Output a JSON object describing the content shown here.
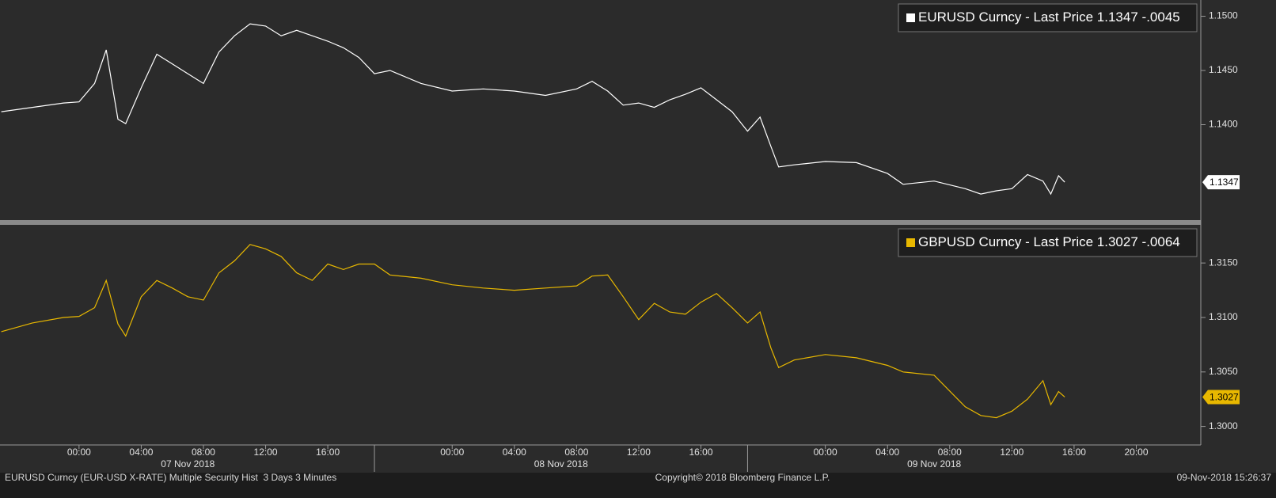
{
  "chart_data": {
    "type": "line",
    "x": [
      "2018-11-06T19:00",
      "2018-11-06T21:00",
      "2018-11-06T23:00",
      "2018-11-07T00:00",
      "2018-11-07T01:00",
      "2018-11-07T01:45",
      "2018-11-07T02:30",
      "2018-11-07T03:00",
      "2018-11-07T04:00",
      "2018-11-07T05:00",
      "2018-11-07T06:00",
      "2018-11-07T07:00",
      "2018-11-07T08:00",
      "2018-11-07T09:00",
      "2018-11-07T10:00",
      "2018-11-07T11:00",
      "2018-11-07T12:00",
      "2018-11-07T13:00",
      "2018-11-07T14:00",
      "2018-11-07T15:00",
      "2018-11-07T16:00",
      "2018-11-07T17:00",
      "2018-11-07T18:00",
      "2018-11-07T19:00",
      "2018-11-07T20:00",
      "2018-11-07T22:00",
      "2018-11-08T00:00",
      "2018-11-08T02:00",
      "2018-11-08T04:00",
      "2018-11-08T06:00",
      "2018-11-08T08:00",
      "2018-11-08T09:00",
      "2018-11-08T10:00",
      "2018-11-08T11:00",
      "2018-11-08T12:00",
      "2018-11-08T13:00",
      "2018-11-08T14:00",
      "2018-11-08T15:00",
      "2018-11-08T16:00",
      "2018-11-08T17:00",
      "2018-11-08T18:00",
      "2018-11-08T19:00",
      "2018-11-08T19:48",
      "2018-11-08T20:30",
      "2018-11-08T21:00",
      "2018-11-08T22:00",
      "2018-11-09T00:00",
      "2018-11-09T02:00",
      "2018-11-09T04:00",
      "2018-11-09T05:00",
      "2018-11-09T07:00",
      "2018-11-09T09:00",
      "2018-11-09T10:00",
      "2018-11-09T11:00",
      "2018-11-09T12:00",
      "2018-11-09T13:00",
      "2018-11-09T14:00",
      "2018-11-09T14:30",
      "2018-11-09T15:00",
      "2018-11-09T15:24"
    ],
    "xlim": [
      "2018-11-06T18:55",
      "2018-11-10T00:09"
    ],
    "xticks": [
      {
        "value": "2018-11-07T00:00",
        "label": "00:00"
      },
      {
        "value": "2018-11-07T04:00",
        "label": "04:00"
      },
      {
        "value": "2018-11-07T08:00",
        "label": "08:00"
      },
      {
        "value": "2018-11-07T12:00",
        "label": "12:00"
      },
      {
        "value": "2018-11-07T16:00",
        "label": "16:00"
      },
      {
        "value": "2018-11-08T00:00",
        "label": "00:00"
      },
      {
        "value": "2018-11-08T04:00",
        "label": "04:00"
      },
      {
        "value": "2018-11-08T08:00",
        "label": "08:00"
      },
      {
        "value": "2018-11-08T12:00",
        "label": "12:00"
      },
      {
        "value": "2018-11-08T16:00",
        "label": "16:00"
      },
      {
        "value": "2018-11-09T00:00",
        "label": "00:00"
      },
      {
        "value": "2018-11-09T04:00",
        "label": "04:00"
      },
      {
        "value": "2018-11-09T08:00",
        "label": "08:00"
      },
      {
        "value": "2018-11-09T12:00",
        "label": "12:00"
      },
      {
        "value": "2018-11-09T16:00",
        "label": "16:00"
      },
      {
        "value": "2018-11-09T20:00",
        "label": "20:00"
      }
    ],
    "date_labels": [
      {
        "value": "2018-11-07T07:00",
        "label": "07 Nov 2018"
      },
      {
        "value": "2018-11-08T07:00",
        "label": "08 Nov 2018"
      },
      {
        "value": "2018-11-09T07:00",
        "label": "09 Nov 2018"
      }
    ],
    "day_breaks": [
      "2018-11-07T19:00",
      "2018-11-08T19:00"
    ],
    "panels": [
      {
        "series": [
          {
            "name": "EURUSD Curncy - Last Price",
            "color": "#ffffff",
            "values": [
              1.1412,
              1.1416,
              1.142,
              1.1421,
              1.1438,
              1.1469,
              1.1405,
              1.1401,
              1.1434,
              1.1465,
              1.1456,
              1.1447,
              1.1438,
              1.1467,
              1.1482,
              1.1493,
              1.1491,
              1.1482,
              1.1487,
              1.1482,
              1.1477,
              1.1471,
              1.1462,
              1.1447,
              1.145,
              1.1438,
              1.1431,
              1.1433,
              1.1431,
              1.1427,
              1.1433,
              1.144,
              1.1431,
              1.1418,
              1.142,
              1.1416,
              1.1423,
              1.1428,
              1.1434,
              1.1423,
              1.1412,
              1.1394,
              1.1407,
              1.138,
              1.1361,
              1.1363,
              1.1366,
              1.1365,
              1.1355,
              1.1345,
              1.1348,
              1.1341,
              1.1336,
              1.1339,
              1.1341,
              1.1354,
              1.1348,
              1.1336,
              1.1353,
              1.1347
            ],
            "last": 1.1347,
            "change": {
              "value": -0.0045,
              "label": "-.0045"
            }
          }
        ],
        "ylim": [
          1.1312,
          1.1515
        ],
        "yticks": [
          {
            "value": 1.15,
            "label": "1.1500"
          },
          {
            "value": 1.145,
            "label": "1.1450"
          },
          {
            "value": 1.14,
            "label": "1.1400"
          }
        ]
      },
      {
        "series": [
          {
            "name": "GBPUSD Curncy - Last Price",
            "color": "#e8b800",
            "values": [
              1.3087,
              1.3095,
              1.31,
              1.3101,
              1.3109,
              1.3134,
              1.3094,
              1.3083,
              1.3119,
              1.3134,
              1.3127,
              1.3119,
              1.3116,
              1.3141,
              1.3152,
              1.3167,
              1.3163,
              1.3156,
              1.3141,
              1.3134,
              1.3149,
              1.3144,
              1.3149,
              1.3149,
              1.3139,
              1.3136,
              1.313,
              1.3127,
              1.3125,
              1.3127,
              1.3129,
              1.3138,
              1.3139,
              1.3119,
              1.3098,
              1.3113,
              1.3105,
              1.3103,
              1.3114,
              1.3122,
              1.3109,
              1.3095,
              1.3105,
              1.3072,
              1.3054,
              1.3061,
              1.3066,
              1.3063,
              1.3056,
              1.305,
              1.3047,
              1.3018,
              1.301,
              1.3008,
              1.3014,
              1.3025,
              1.3042,
              1.302,
              1.3032,
              1.3027
            ],
            "last": 1.3027,
            "change": {
              "value": -0.0064,
              "label": "-.0064"
            }
          }
        ],
        "ylim": [
          1.2983,
          1.3185
        ],
        "yticks": [
          {
            "value": 1.315,
            "label": "1.3150"
          },
          {
            "value": 1.31,
            "label": "1.3100"
          },
          {
            "value": 1.305,
            "label": "1.3050"
          },
          {
            "value": 1.3,
            "label": "1.3000"
          }
        ]
      }
    ]
  },
  "footer": {
    "left": "EURUSD Curncy (EUR-USD X-RATE) Multiple Security Hist  3 Days 3 Minutes",
    "center": "Copyright© 2018 Bloomberg Finance L.P.",
    "right": "09-Nov-2018 15:26:37"
  }
}
